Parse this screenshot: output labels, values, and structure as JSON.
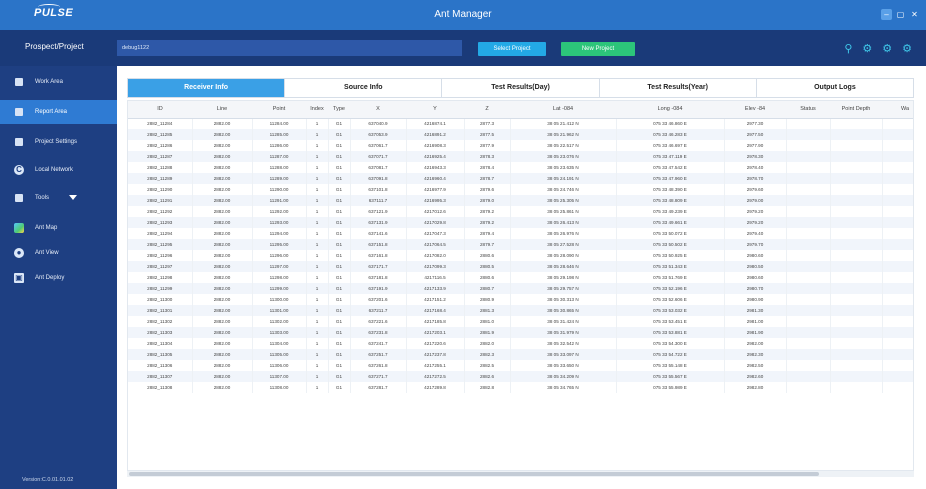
{
  "app": {
    "logo": "PULSE",
    "title": "Ant Manager",
    "version": "Version:C.0.01.01.02"
  },
  "project_bar": {
    "label": "Prospect/Project",
    "value": "debug1122",
    "select_button": "Select Project",
    "new_button": "New Project"
  },
  "sidebar": {
    "items": [
      {
        "label": "Work Area",
        "icon": "grid-icon"
      },
      {
        "label": "Report Area",
        "icon": "report-icon"
      },
      {
        "label": "Project Settings",
        "icon": "settings-icon"
      },
      {
        "label": "Local Network",
        "icon": "network-icon"
      },
      {
        "label": "Tools",
        "icon": "tools-icon"
      },
      {
        "label": "Ant Map",
        "icon": "map-icon"
      },
      {
        "label": "Ant View",
        "icon": "view-icon"
      },
      {
        "label": "Ant Deploy",
        "icon": "deploy-icon"
      }
    ],
    "active_index": 1
  },
  "tabs": [
    "Receiver Info",
    "Source Info",
    "Test Results(Day)",
    "Test Results(Year)",
    "Output Logs"
  ],
  "active_tab": 0,
  "table": {
    "columns": [
      "ID",
      "Line",
      "Point",
      "Index",
      "Type",
      "X",
      "Y",
      "Z",
      "Lat -084",
      "Long -084",
      "Elev -84",
      "Status",
      "Point Depth",
      "Wa"
    ],
    "rows": [
      [
        "2882_11284",
        "2882.00",
        "11284.00",
        "1",
        "G1",
        "637040.9",
        "4216874.1",
        "2877.3",
        "38 05 21.412 N",
        "075 33 46.860 E",
        "2977.30",
        "",
        "",
        ""
      ],
      [
        "2882_11285",
        "2882.00",
        "11285.00",
        "1",
        "G1",
        "637053.9",
        "4216891.2",
        "2877.5",
        "38 05 21.962 N",
        "075 33 46.283 E",
        "2977.50",
        "",
        "",
        ""
      ],
      [
        "2882_11286",
        "2882.00",
        "11286.00",
        "1",
        "G1",
        "637061.7",
        "4216908.3",
        "2877.9",
        "38 05 22.517 N",
        "075 33 46.697 E",
        "2977.90",
        "",
        "",
        ""
      ],
      [
        "2882_11287",
        "2882.00",
        "11287.00",
        "1",
        "G1",
        "637071.7",
        "4216925.4",
        "2878.3",
        "38 05 23.076 N",
        "075 33 47.119 E",
        "2978.30",
        "",
        "",
        ""
      ],
      [
        "2882_11288",
        "2882.00",
        "11288.00",
        "1",
        "G1",
        "637081.7",
        "4216943.3",
        "2878.4",
        "38 05 23.635 N",
        "075 33 47.542 E",
        "2978.40",
        "",
        "",
        ""
      ],
      [
        "2882_11289",
        "2882.00",
        "11289.00",
        "1",
        "G1",
        "637091.8",
        "4216960.4",
        "2878.7",
        "38 05 24.191 N",
        "075 33 47.960 E",
        "2978.70",
        "",
        "",
        ""
      ],
      [
        "2882_11290",
        "2882.00",
        "11290.00",
        "1",
        "G1",
        "637101.8",
        "4216977.9",
        "2879.6",
        "38 05 24.746 N",
        "075 33 48.390 E",
        "2979.60",
        "",
        "",
        ""
      ],
      [
        "2882_11291",
        "2882.00",
        "11291.00",
        "1",
        "G1",
        "637111.7",
        "4216995.3",
        "2879.0",
        "38 05 25.305 N",
        "075 33 48.809 E",
        "2979.00",
        "",
        "",
        ""
      ],
      [
        "2882_11292",
        "2882.00",
        "11292.00",
        "1",
        "G1",
        "637121.9",
        "4217012.6",
        "2879.2",
        "38 05 25.861 N",
        "075 33 49.239 E",
        "2979.20",
        "",
        "",
        ""
      ],
      [
        "2882_11293",
        "2882.00",
        "11293.00",
        "1",
        "G1",
        "637131.9",
        "4217029.8",
        "2879.2",
        "38 05 26.413 N",
        "075 33 49.661 E",
        "2979.20",
        "",
        "",
        ""
      ],
      [
        "2882_11294",
        "2882.00",
        "11294.00",
        "1",
        "G1",
        "637141.6",
        "4217047.3",
        "2879.4",
        "38 05 26.976 N",
        "075 33 50.072 E",
        "2979.40",
        "",
        "",
        ""
      ],
      [
        "2882_11295",
        "2882.00",
        "11295.00",
        "1",
        "G1",
        "637151.8",
        "4217064.5",
        "2879.7",
        "38 05 27.528 N",
        "075 33 50.502 E",
        "2979.70",
        "",
        "",
        ""
      ],
      [
        "2882_11296",
        "2882.00",
        "11296.00",
        "1",
        "G1",
        "637161.8",
        "4217082.0",
        "2880.6",
        "38 05 28.090 N",
        "075 33 50.925 E",
        "2980.60",
        "",
        "",
        ""
      ],
      [
        "2882_11297",
        "2882.00",
        "11297.00",
        "1",
        "G1",
        "637171.7",
        "4217099.3",
        "2880.5",
        "38 05 28.646 N",
        "075 33 51.343 E",
        "2980.50",
        "",
        "",
        ""
      ],
      [
        "2882_11298",
        "2882.00",
        "11298.00",
        "1",
        "G1",
        "637181.8",
        "4217116.5",
        "2880.6",
        "38 05 29.198 N",
        "075 33 51.769 E",
        "2980.60",
        "",
        "",
        ""
      ],
      [
        "2882_11299",
        "2882.00",
        "11299.00",
        "1",
        "G1",
        "637191.9",
        "4217133.9",
        "2880.7",
        "38 05 29.757 N",
        "075 33 52.196 E",
        "2980.70",
        "",
        "",
        ""
      ],
      [
        "2882_11300",
        "2882.00",
        "11300.00",
        "1",
        "G1",
        "637201.6",
        "4217151.2",
        "2880.9",
        "38 05 30.313 N",
        "075 33 52.606 E",
        "2980.90",
        "",
        "",
        ""
      ],
      [
        "2882_11301",
        "2882.00",
        "11301.00",
        "1",
        "G1",
        "637211.7",
        "4217168.4",
        "2881.3",
        "38 05 30.865 N",
        "075 33 53.032 E",
        "2981.30",
        "",
        "",
        ""
      ],
      [
        "2882_11302",
        "2882.00",
        "11302.00",
        "1",
        "G1",
        "637221.6",
        "4217185.8",
        "2881.0",
        "38 05 31.424 N",
        "075 33 53.451 E",
        "2981.00",
        "",
        "",
        ""
      ],
      [
        "2882_11303",
        "2882.00",
        "11303.00",
        "1",
        "G1",
        "637231.8",
        "4217203.1",
        "2881.9",
        "38 05 31.979 N",
        "075 33 53.881 E",
        "2981.90",
        "",
        "",
        ""
      ],
      [
        "2882_11304",
        "2882.00",
        "11304.00",
        "1",
        "G1",
        "637241.7",
        "4217220.6",
        "2882.0",
        "38 05 32.542 N",
        "075 33 54.300 E",
        "2982.00",
        "",
        "",
        ""
      ],
      [
        "2882_11305",
        "2882.00",
        "11305.00",
        "1",
        "G1",
        "637251.7",
        "4217237.8",
        "2882.3",
        "38 05 33.097 N",
        "075 33 54.722 E",
        "2982.30",
        "",
        "",
        ""
      ],
      [
        "2882_11306",
        "2882.00",
        "11306.00",
        "1",
        "G1",
        "637261.8",
        "4217255.1",
        "2882.5",
        "38 05 33.650 N",
        "075 33 55.148 E",
        "2982.50",
        "",
        "",
        ""
      ],
      [
        "2882_11307",
        "2882.00",
        "11307.00",
        "1",
        "G1",
        "637271.7",
        "4217272.5",
        "2882.6",
        "38 05 34.209 N",
        "075 33 55.567 E",
        "2982.60",
        "",
        "",
        ""
      ],
      [
        "2882_11308",
        "2882.00",
        "11308.00",
        "1",
        "G1",
        "637281.7",
        "4217289.8",
        "2882.8",
        "38 05 34.765 N",
        "075 33 55.989 E",
        "2982.80",
        "",
        "",
        ""
      ]
    ]
  }
}
